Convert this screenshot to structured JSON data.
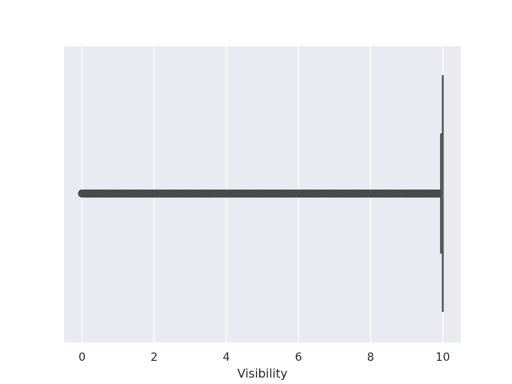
{
  "chart_data": {
    "type": "boxplot",
    "orientation": "horizontal",
    "title": "",
    "xlabel": "Visibility",
    "ylabel": "",
    "xlim": [
      -0.5,
      10.5
    ],
    "xticks": [
      0,
      2,
      4,
      6,
      8,
      10
    ],
    "tick_labels": [
      "0",
      "2",
      "4",
      "6",
      "8",
      "10"
    ],
    "grid": true,
    "background_color": "#eaeaf2",
    "grid_color": "#ffffff",
    "box_color": "#4a4a4a",
    "box": {
      "whisker_low": 9.95,
      "q1": 9.95,
      "median": 10.0,
      "q3": 10.0,
      "whisker_high": 10.0
    },
    "outlier_range": [
      0.0,
      9.9
    ],
    "outliers_sample": [
      0.0,
      0.05,
      0.1,
      0.15,
      0.2,
      0.25,
      0.3,
      0.35,
      0.4,
      0.5,
      0.6,
      0.75,
      0.8,
      0.9,
      1.0,
      1.1,
      1.2,
      1.5,
      2.0,
      2.5,
      3.0,
      3.5,
      4.0,
      4.5,
      5.0,
      5.5,
      6.0,
      6.5,
      7.0,
      7.5,
      8.0,
      8.5,
      9.0,
      9.2,
      9.4,
      9.5,
      9.6,
      9.7,
      9.8,
      9.85,
      9.9
    ]
  }
}
